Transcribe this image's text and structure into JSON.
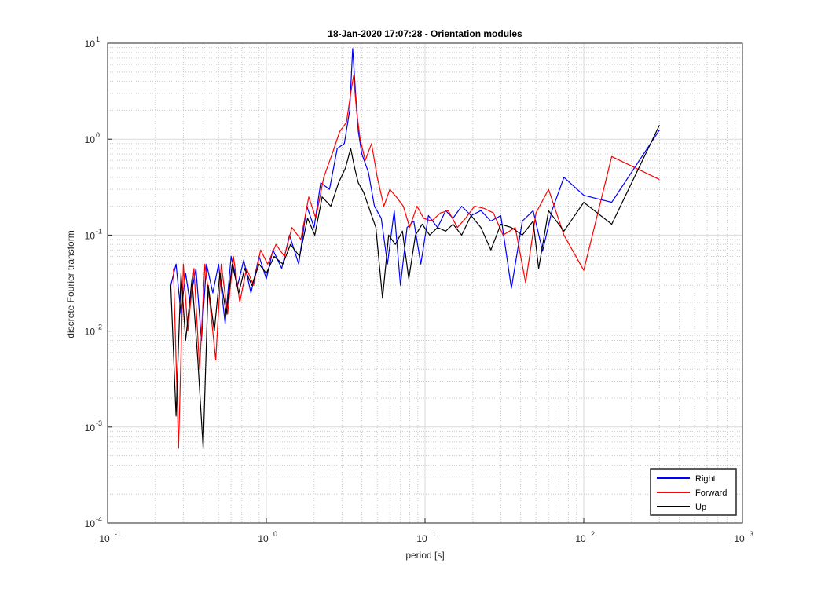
{
  "chart_data": {
    "type": "line",
    "title": "18-Jan-2020 17:07:28 - Orientation modules",
    "xlabel": "period [s]",
    "ylabel": "discrete Fourier transform",
    "xscale": "log",
    "yscale": "log",
    "xlim": [
      0.1,
      1000
    ],
    "ylim": [
      0.0001,
      10
    ],
    "xticks": [
      {
        "value": 0.1,
        "base": "10",
        "exp": "-1"
      },
      {
        "value": 1,
        "base": "10",
        "exp": "0"
      },
      {
        "value": 10,
        "base": "10",
        "exp": "1"
      },
      {
        "value": 100,
        "base": "10",
        "exp": "2"
      },
      {
        "value": 1000,
        "base": "10",
        "exp": "3"
      }
    ],
    "yticks": [
      {
        "value": 0.0001,
        "base": "10",
        "exp": "-4"
      },
      {
        "value": 0.001,
        "base": "10",
        "exp": "-3"
      },
      {
        "value": 0.01,
        "base": "10",
        "exp": "-2"
      },
      {
        "value": 0.1,
        "base": "10",
        "exp": "-1"
      },
      {
        "value": 1,
        "base": "10",
        "exp": "0"
      },
      {
        "value": 10,
        "base": "10",
        "exp": "1"
      }
    ],
    "grid": true,
    "minor_grid": true,
    "legend_position": "bottom-right",
    "series": [
      {
        "name": "Right",
        "color": "#0000ff",
        "x": [
          0.25,
          0.27,
          0.29,
          0.31,
          0.33,
          0.36,
          0.39,
          0.42,
          0.46,
          0.5,
          0.55,
          0.6,
          0.66,
          0.72,
          0.8,
          0.9,
          1.0,
          1.1,
          1.25,
          1.4,
          1.6,
          1.8,
          2.0,
          2.2,
          2.5,
          2.8,
          3.1,
          3.35,
          3.5,
          3.65,
          3.8,
          4.0,
          4.4,
          4.8,
          5.3,
          5.8,
          6.4,
          7.0,
          7.7,
          8.5,
          9.4,
          10.5,
          12,
          13.5,
          15,
          17,
          19.5,
          22.5,
          26,
          30,
          35,
          41,
          48,
          55,
          63,
          75,
          100,
          150,
          300
        ],
        "values": [
          0.03,
          0.05,
          0.015,
          0.04,
          0.02,
          0.045,
          0.008,
          0.05,
          0.025,
          0.05,
          0.012,
          0.06,
          0.03,
          0.055,
          0.025,
          0.06,
          0.035,
          0.07,
          0.045,
          0.1,
          0.05,
          0.2,
          0.12,
          0.35,
          0.3,
          0.8,
          0.9,
          2.0,
          8.8,
          3.0,
          1.2,
          0.7,
          0.45,
          0.2,
          0.15,
          0.05,
          0.18,
          0.03,
          0.12,
          0.14,
          0.05,
          0.16,
          0.12,
          0.18,
          0.15,
          0.2,
          0.16,
          0.18,
          0.14,
          0.16,
          0.028,
          0.14,
          0.18,
          0.068,
          0.18,
          0.4,
          0.26,
          0.22,
          1.25
        ]
      },
      {
        "name": "Forward",
        "color": "#ff0000",
        "x": [
          0.26,
          0.28,
          0.3,
          0.32,
          0.35,
          0.38,
          0.41,
          0.44,
          0.48,
          0.52,
          0.57,
          0.62,
          0.68,
          0.75,
          0.83,
          0.92,
          1.02,
          1.15,
          1.3,
          1.45,
          1.65,
          1.85,
          2.05,
          2.3,
          2.6,
          2.9,
          3.2,
          3.4,
          3.55,
          3.7,
          3.9,
          4.2,
          4.6,
          5.0,
          5.5,
          6.0,
          6.6,
          7.3,
          8.0,
          8.9,
          9.8,
          11,
          12.5,
          14,
          16,
          18,
          20.5,
          23.5,
          27,
          31,
          37,
          43,
          50,
          60,
          75,
          100,
          150,
          300
        ],
        "values": [
          0.045,
          0.0006,
          0.05,
          0.01,
          0.045,
          0.004,
          0.05,
          0.02,
          0.005,
          0.05,
          0.015,
          0.06,
          0.02,
          0.045,
          0.03,
          0.07,
          0.05,
          0.08,
          0.06,
          0.12,
          0.09,
          0.25,
          0.15,
          0.4,
          0.7,
          1.2,
          1.5,
          3.0,
          4.6,
          2.0,
          1.0,
          0.6,
          0.9,
          0.4,
          0.2,
          0.3,
          0.25,
          0.2,
          0.12,
          0.2,
          0.15,
          0.14,
          0.17,
          0.18,
          0.12,
          0.15,
          0.2,
          0.19,
          0.17,
          0.1,
          0.12,
          0.032,
          0.17,
          0.3,
          0.1,
          0.043,
          0.66,
          0.38
        ]
      },
      {
        "name": "Up",
        "color": "#000000",
        "x": [
          0.25,
          0.27,
          0.29,
          0.31,
          0.34,
          0.37,
          0.4,
          0.43,
          0.47,
          0.51,
          0.56,
          0.61,
          0.67,
          0.73,
          0.81,
          0.9,
          1.0,
          1.12,
          1.27,
          1.42,
          1.62,
          1.82,
          2.02,
          2.25,
          2.55,
          2.85,
          3.15,
          3.4,
          3.6,
          3.8,
          4.1,
          4.5,
          4.9,
          5.4,
          5.9,
          6.5,
          7.2,
          7.9,
          8.7,
          9.6,
          10.7,
          12,
          13.5,
          15,
          17,
          19.5,
          22.5,
          26,
          30,
          35,
          41,
          48,
          52,
          60,
          75,
          100,
          150,
          300
        ],
        "values": [
          0.03,
          0.0013,
          0.04,
          0.008,
          0.035,
          0.005,
          0.0006,
          0.03,
          0.01,
          0.04,
          0.015,
          0.05,
          0.025,
          0.045,
          0.03,
          0.05,
          0.04,
          0.06,
          0.05,
          0.08,
          0.06,
          0.15,
          0.1,
          0.25,
          0.2,
          0.35,
          0.5,
          0.8,
          0.5,
          0.35,
          0.28,
          0.18,
          0.12,
          0.022,
          0.1,
          0.08,
          0.11,
          0.035,
          0.1,
          0.13,
          0.1,
          0.12,
          0.11,
          0.13,
          0.1,
          0.16,
          0.12,
          0.07,
          0.13,
          0.12,
          0.1,
          0.14,
          0.045,
          0.18,
          0.11,
          0.22,
          0.13,
          1.4
        ]
      }
    ]
  }
}
